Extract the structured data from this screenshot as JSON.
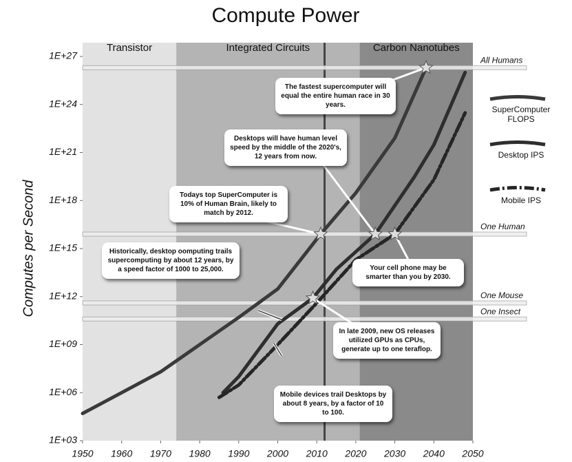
{
  "chart_data": {
    "type": "line",
    "title": "Compute Power",
    "ylabel": "Computes per Second",
    "log_y": true,
    "xlim": [
      1950,
      2050
    ],
    "xticks": [
      1950,
      1960,
      1970,
      1980,
      1990,
      2000,
      2010,
      2020,
      2030,
      2040,
      2050
    ],
    "ylim": [
      1000.0,
      1e+27
    ],
    "yticks": [
      {
        "value": 1000.0,
        "label": "1E+03"
      },
      {
        "value": 1000000.0,
        "label": "1E+06"
      },
      {
        "value": 1000000000.0,
        "label": "1E+09"
      },
      {
        "value": 1000000000000.0,
        "label": "1E+12"
      },
      {
        "value": 1000000000000000.0,
        "label": "1E+15"
      },
      {
        "value": 1e+18,
        "label": "1E+18"
      },
      {
        "value": 1e+21,
        "label": "1E+21"
      },
      {
        "value": 1e+24,
        "label": "1E+24"
      },
      {
        "value": 1e+27,
        "label": "1E+27"
      }
    ],
    "eras": [
      {
        "name": "Transistor",
        "start": 1950,
        "end": 1974,
        "color": "#e2e2e2"
      },
      {
        "name": "Integrated Circuits",
        "start": 1974,
        "end": 2021,
        "color": "#b4b4b4"
      },
      {
        "name": "Carbon Nanotubes",
        "start": 2021,
        "end": 2050,
        "color": "#8a8a8a"
      }
    ],
    "now_line": 2012,
    "reference_lines": [
      {
        "name": "All Humans",
        "value": 2e+26
      },
      {
        "name": "One Human",
        "value": 8000000000000000.0
      },
      {
        "name": "One Mouse",
        "value": 400000000000.0
      },
      {
        "name": "One Insect",
        "value": 40000000000.0
      }
    ],
    "series": [
      {
        "name": "SuperComputer FLOPS",
        "color": "#3a3a3a",
        "x": [
          1950,
          1960,
          1970,
          1980,
          1990,
          2000,
          2011,
          2020,
          2030,
          2038
        ],
        "values": [
          50000.0,
          1000000.0,
          20000000.0,
          1000000000.0,
          50000000000.0,
          3000000000000.0,
          8000000000000000.0,
          3e+18,
          8e+21,
          2e+26
        ]
      },
      {
        "name": "Desktop IPS",
        "color": "#2e2e2e",
        "x": [
          1986,
          1990,
          2000,
          2009,
          2015,
          2025,
          2035,
          2040,
          2048
        ],
        "values": [
          1000000.0,
          10000000.0,
          20000000000.0,
          800000000000.0,
          50000000000000.0,
          8000000000000000.0,
          3e+19,
          3e+21,
          1e+26
        ]
      },
      {
        "name": "Mobile IPS",
        "color": "#262626",
        "x": [
          1985,
          1990,
          2000,
          2010,
          2020,
          2030,
          2040,
          2048
        ],
        "values": [
          500000.0,
          3000000.0,
          1000000000.0,
          400000000000.0,
          200000000000000.0,
          8000000000000000.0,
          2e+19,
          3e+23
        ]
      }
    ],
    "stars": [
      {
        "x": 2038,
        "y": 2e+26
      },
      {
        "x": 2011,
        "y": 8000000000000000.0
      },
      {
        "x": 2025,
        "y": 8000000000000000.0
      },
      {
        "x": 2030,
        "y": 8000000000000000.0
      },
      {
        "x": 2009,
        "y": 800000000000.0
      }
    ],
    "callouts": [
      "The fastest supercomputer will equal the entire human race in 30 years.",
      "Desktops will have human level speed by the middle of the 2020's, 12 years from now.",
      "Todays top SuperComputer is 10% of Human Brain, likely to match by 2012.",
      "Historically, desktop oomputing trails supercomputing by about 12 years, by a speed factor of 1000 to 25,000.",
      "Your cell phone may be smarter than you by 2030.",
      "In late 2009, new OS releases utilized GPUs as CPUs, generate up to one teraflop.",
      "Mobile devices trail Desktops by about 8 years, by a factor of 10 to 100."
    ]
  }
}
